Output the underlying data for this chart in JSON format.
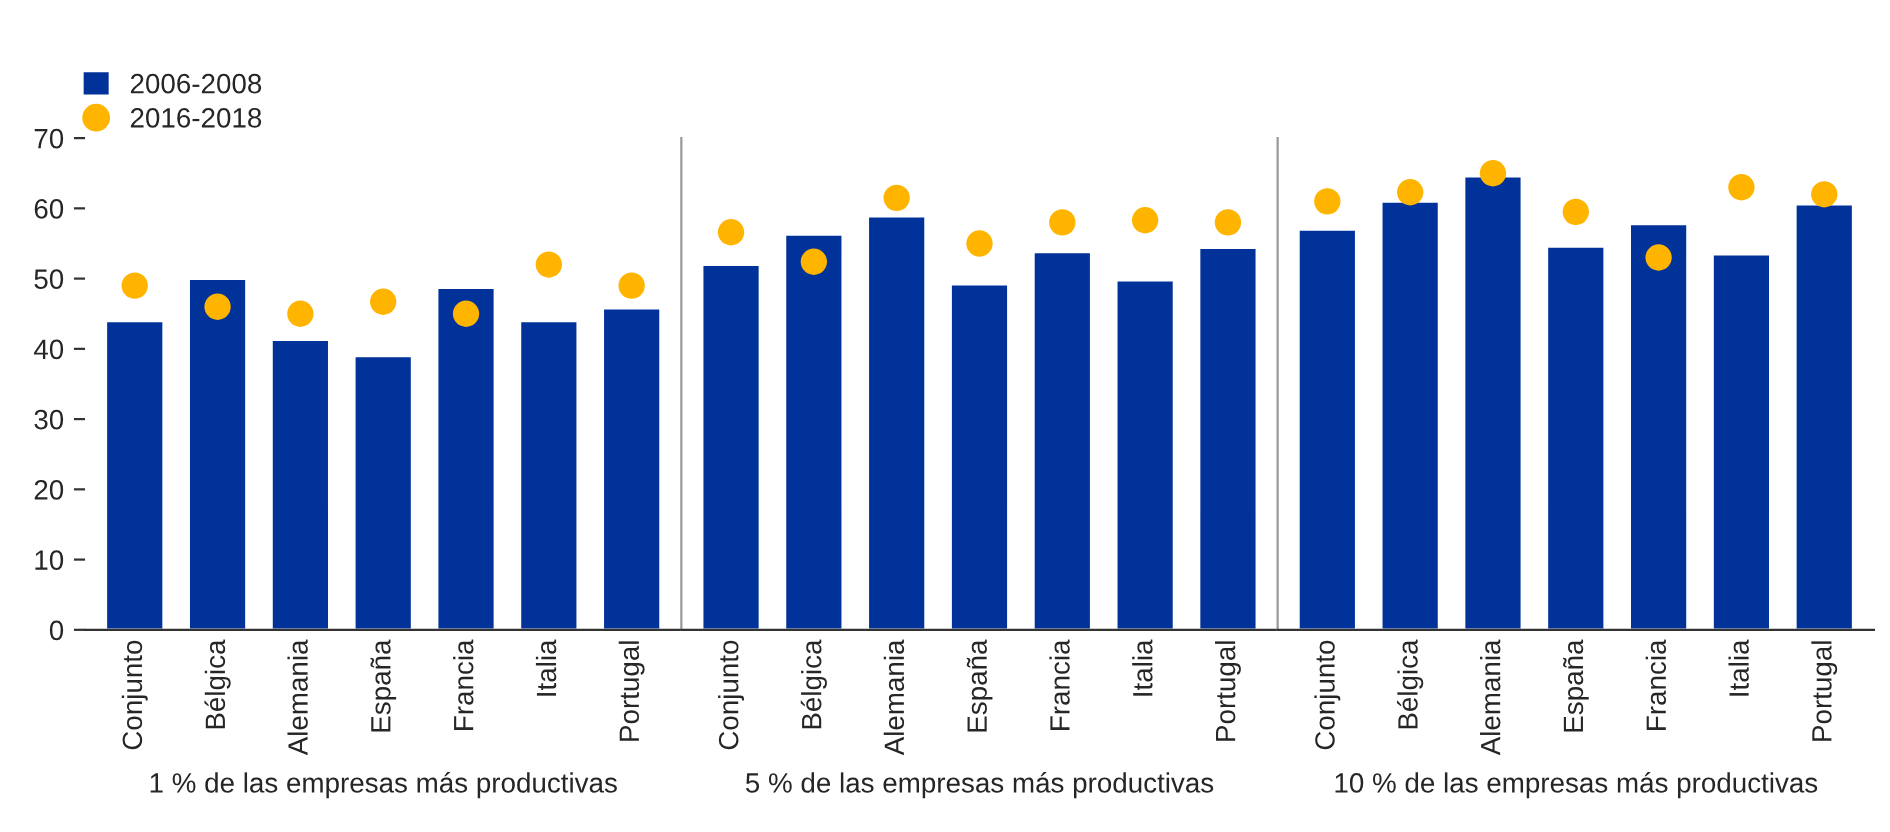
{
  "chart_data": [
    {
      "type": "bar",
      "xlabel": "1 % de las empresas más productivas",
      "categories": [
        "Conjunto",
        "Bélgica",
        "Alemania",
        "España",
        "Francia",
        "Italia",
        "Portugal"
      ],
      "ylim": [
        0,
        70
      ],
      "yticks": [
        0,
        10,
        20,
        30,
        40,
        50,
        60,
        70
      ],
      "legend": "top left",
      "marker": "circle",
      "series": [
        {
          "name": "2006-2008",
          "color": "#003299",
          "values": [
            44,
            50,
            41.3,
            39,
            48.7,
            44,
            45.8
          ]
        },
        {
          "name": "2016-2018",
          "type": "scatter",
          "color": "#ffb400",
          "values": [
            49,
            46,
            45,
            46.7,
            45,
            52,
            49
          ]
        }
      ]
    },
    {
      "type": "bar",
      "xlabel": "5 % de las empresas más productivas",
      "categories": [
        "Conjunto",
        "Bélgica",
        "Alemania",
        "España",
        "Francia",
        "Italia",
        "Portugal"
      ],
      "ylim": [
        0,
        70
      ],
      "tick_labels": "x",
      "marker": "circle",
      "series": [
        {
          "color": "#003299",
          "values": [
            52,
            56.3,
            58.9,
            49.2,
            53.8,
            49.8,
            54.4
          ]
        },
        {
          "type": "scatter",
          "color": "#ffb400",
          "values": [
            56.6,
            52.4,
            61.5,
            55,
            58,
            58.3,
            58
          ]
        }
      ]
    },
    {
      "type": "bar",
      "xlabel": "10 % de las empresas más productivas",
      "categories": [
        "Conjunto",
        "Bélgica",
        "Alemania",
        "España",
        "Francia",
        "Italia",
        "Portugal"
      ],
      "ylim": [
        0,
        70
      ],
      "tick_labels": "x",
      "marker": "circle",
      "series": [
        {
          "color": "#003299",
          "values": [
            57,
            61,
            64.6,
            54.6,
            57.8,
            53.5,
            60.6
          ]
        },
        {
          "type": "scatter",
          "color": "#ffb400",
          "values": [
            61,
            62.3,
            65,
            59.5,
            53,
            63,
            62
          ]
        }
      ]
    }
  ]
}
